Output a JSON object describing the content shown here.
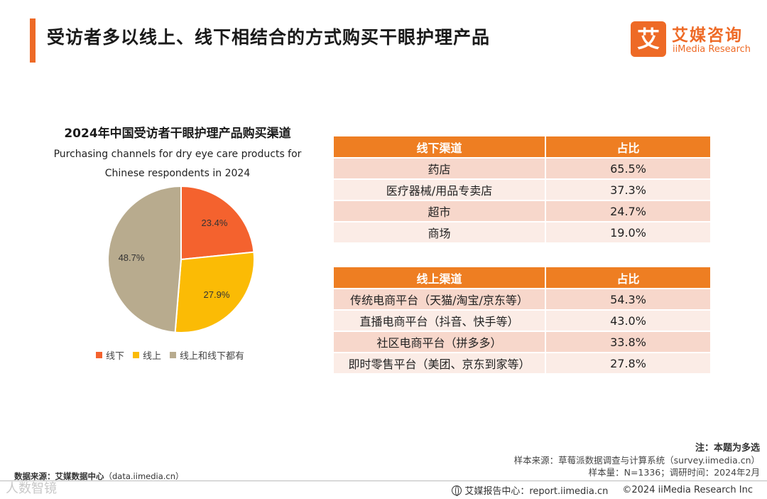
{
  "page": {
    "title": "受访者多以线上、线下相结合的方式购买干眼护理产品"
  },
  "logo": {
    "mark": "艾",
    "cn": "艾媒咨询",
    "en": "iiMedia Research",
    "color": "#ee6a26"
  },
  "chart_data": {
    "type": "pie",
    "title": "2024年中国受访者干眼护理产品购买渠道",
    "subtitle_lines": [
      "Purchasing channels for dry eye care products for",
      "Chinese respondents in 2024"
    ],
    "categories": [
      "线下",
      "线上",
      "线上和线下都有"
    ],
    "values": [
      23.4,
      27.9,
      48.7
    ],
    "labels": [
      "23.4%",
      "27.9%",
      "48.7%"
    ],
    "colors": [
      "#f4622e",
      "#fbbb05",
      "#b8ab8e"
    ],
    "legend_position": "bottom"
  },
  "offline_table": {
    "headers": [
      "线下渠道",
      "占比"
    ],
    "rows": [
      [
        "药店",
        "65.5%"
      ],
      [
        "医疗器械/用品专卖店",
        "37.3%"
      ],
      [
        "超市",
        "24.7%"
      ],
      [
        "商场",
        "19.0%"
      ]
    ]
  },
  "online_table": {
    "headers": [
      "线上渠道",
      "占比"
    ],
    "rows": [
      [
        "传统电商平台（天猫/淘宝/京东等）",
        "54.3%"
      ],
      [
        "直播电商平台（抖音、快手等）",
        "43.0%"
      ],
      [
        "社区电商平台（拼多多）",
        "33.8%"
      ],
      [
        "即时零售平台（美团、京东到家等）",
        "27.8%"
      ]
    ]
  },
  "notes": {
    "note": "注：本题为多选",
    "sample_source": "样本来源：草莓派数据调查与计算系统（survey.iimedia.cn）",
    "sample_size": "样本量：N=1336；调研时间：2024年2月"
  },
  "source": {
    "label": "数据来源：艾媒数据中心",
    "url": "（data.iimedia.cn）"
  },
  "watermark": "人数智镜",
  "footer": {
    "report_center": "艾媒报告中心：report.iimedia.cn",
    "copyright": "©2024  iiMedia Research  Inc"
  }
}
